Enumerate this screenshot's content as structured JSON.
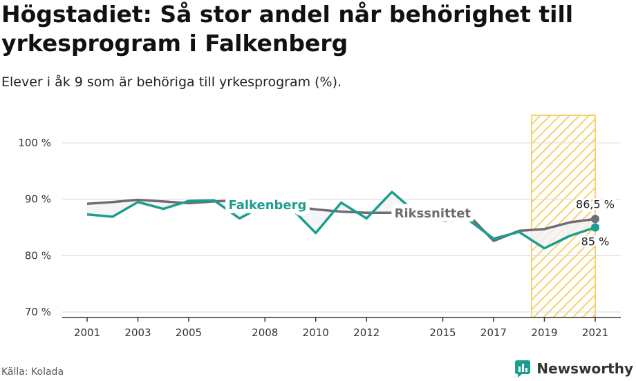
{
  "title": "Högstadiet: Så stor andel når behörighet till yrkesprogram i Falkenberg",
  "subtitle": "Elever i åk 9 som är behöriga till yrkesprogram (%).",
  "source": "Källa: Kolada",
  "brand": "Newsworthy",
  "colors": {
    "falkenberg": "#1a9e8f",
    "riks": "#6f6d73",
    "highlight_stroke": "#f5c242",
    "highlight_hatch": "#f7d16b",
    "grid": "#d9d9d9"
  },
  "chart_data": {
    "type": "line",
    "ylim": [
      70,
      105
    ],
    "xlim": [
      2000,
      2021.5
    ],
    "x_ticks": [
      2001,
      2003,
      2005,
      2008,
      2010,
      2012,
      2015,
      2017,
      2019,
      2021
    ],
    "y_ticks": [
      {
        "value": 70,
        "label": "70 %"
      },
      {
        "value": 80,
        "label": "80 %"
      },
      {
        "value": 90,
        "label": "90 %"
      },
      {
        "value": 100,
        "label": "100 %"
      }
    ],
    "highlight_range": [
      2018.5,
      2021
    ],
    "grid": true,
    "series": [
      {
        "name": "Rikssnittet",
        "x": [
          2001,
          2002,
          2003,
          2004,
          2005,
          2006,
          2007,
          2008,
          2009,
          2010,
          2011,
          2012,
          2013,
          2014,
          2015,
          2016,
          2017,
          2018,
          2019,
          2020,
          2021
        ],
        "values": [
          89.2,
          89.5,
          89.9,
          89.6,
          89.3,
          89.6,
          89.8,
          89.6,
          88.8,
          88.2,
          87.8,
          87.6,
          87.6,
          87.5,
          87.4,
          87.3,
          82.6,
          84.4,
          84.7,
          85.9,
          86.5
        ]
      },
      {
        "name": "Falkenberg",
        "x": [
          2001,
          2002,
          2003,
          2004,
          2005,
          2006,
          2007,
          2008,
          2009,
          2010,
          2011,
          2012,
          2013,
          2014,
          2015,
          2016,
          2017,
          2018,
          2019,
          2020,
          2021
        ],
        "values": [
          87.3,
          86.9,
          89.5,
          88.3,
          89.7,
          89.8,
          86.6,
          89.0,
          88.6,
          84.0,
          89.4,
          86.6,
          91.3,
          87.4,
          86.2,
          86.4,
          83.0,
          84.2,
          81.3,
          83.5,
          85.0
        ]
      }
    ],
    "annotations": [
      {
        "text": "86,5 %",
        "series": "Rikssnittet",
        "x": 2021
      },
      {
        "text": "85 %",
        "series": "Falkenberg",
        "x": 2021
      }
    ]
  }
}
